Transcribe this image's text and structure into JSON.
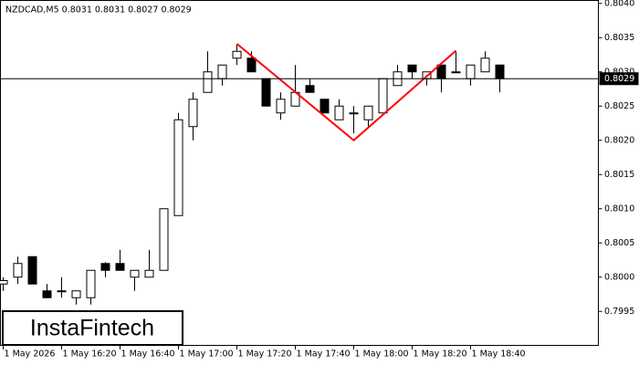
{
  "chart_data": {
    "type": "candlestick",
    "title": "NZDCAD,M5  0.8031 0.8031 0.8027 0.8029",
    "logo": "InstaFintech",
    "categories": [
      "1 May 2026",
      null,
      null,
      null,
      "1 May 16:20",
      null,
      null,
      null,
      "1 May 16:40",
      null,
      null,
      null,
      "1 May 17:00",
      null,
      null,
      null,
      "1 May 17:20",
      null,
      null,
      null,
      "1 May 17:40",
      null,
      null,
      null,
      "1 May 18:00",
      null,
      null,
      null,
      "1 May 18:20",
      null,
      null,
      null,
      "1 May 18:40",
      null,
      null
    ],
    "open": [
      0.7999,
      0.8,
      0.8003,
      0.7998,
      0.7998,
      0.7997,
      0.7997,
      0.8002,
      0.8002,
      0.8,
      0.8,
      0.8001,
      0.8009,
      0.8022,
      0.8027,
      0.8029,
      0.8032,
      0.8032,
      0.8029,
      0.8024,
      0.8025,
      0.8028,
      0.8026,
      0.8023,
      0.8024,
      0.8023,
      0.8024,
      0.8028,
      0.8031,
      0.8029,
      0.8031,
      0.803,
      0.8029,
      0.803,
      0.8031
    ],
    "high": [
      0.8,
      0.8003,
      0.8003,
      0.7999,
      0.8,
      0.7998,
      0.8001,
      0.80022,
      0.8004,
      0.8001,
      0.8004,
      0.801,
      0.8024,
      0.8027,
      0.8033,
      0.8031,
      0.8034,
      0.8033,
      0.8029,
      0.8027,
      0.8031,
      0.8029,
      0.8026,
      0.8026,
      0.8025,
      0.8025,
      0.8029,
      0.8031,
      0.8031,
      0.803,
      0.8031,
      0.8033,
      0.8031,
      0.8033,
      0.8031
    ],
    "low": [
      0.7998,
      0.7999,
      0.7999,
      0.7997,
      0.7997,
      0.7996,
      0.7996,
      0.8,
      0.8001,
      0.7998,
      0.8,
      0.8001,
      0.8009,
      0.802,
      0.8027,
      0.8028,
      0.8031,
      0.803,
      0.8025,
      0.8023,
      0.8025,
      0.8027,
      0.8024,
      0.8023,
      0.8021,
      0.8022,
      0.8024,
      0.8028,
      0.8029,
      0.8028,
      0.8027,
      0.803,
      0.8028,
      0.803,
      0.8027
    ],
    "close": [
      0.79995,
      0.8002,
      0.7999,
      0.7997,
      0.7998,
      0.7998,
      0.8001,
      0.8001,
      0.8001,
      0.8001,
      0.8001,
      0.801,
      0.8023,
      0.8026,
      0.803,
      0.8031,
      0.8033,
      0.803,
      0.8025,
      0.8026,
      0.8027,
      0.8027,
      0.8024,
      0.8025,
      0.8024,
      0.8025,
      0.8029,
      0.803,
      0.803,
      0.803,
      0.8029,
      0.803,
      0.8031,
      0.8032,
      0.8029
    ],
    "up_color": "#ffffff",
    "down_color": "#000000",
    "pattern_line": {
      "color": "#ff0000",
      "x": [
        16,
        24,
        31
      ],
      "values": [
        0.80341,
        0.802,
        0.80331
      ]
    },
    "last_price": 0.8029,
    "ylim": [
      0.79901,
      0.80405
    ],
    "yticks": [
      {
        "value": 0.804,
        "label": "0.8040"
      },
      0.8035,
      {
        "value": 0.803,
        "label": "0.8030"
      },
      0.8025,
      {
        "value": 0.802,
        "label": "0.8020"
      },
      0.8015,
      {
        "value": 0.801,
        "label": "0.8010"
      },
      0.8005,
      {
        "value": 0.8,
        "label": "0.8000"
      },
      0.7995
    ]
  }
}
